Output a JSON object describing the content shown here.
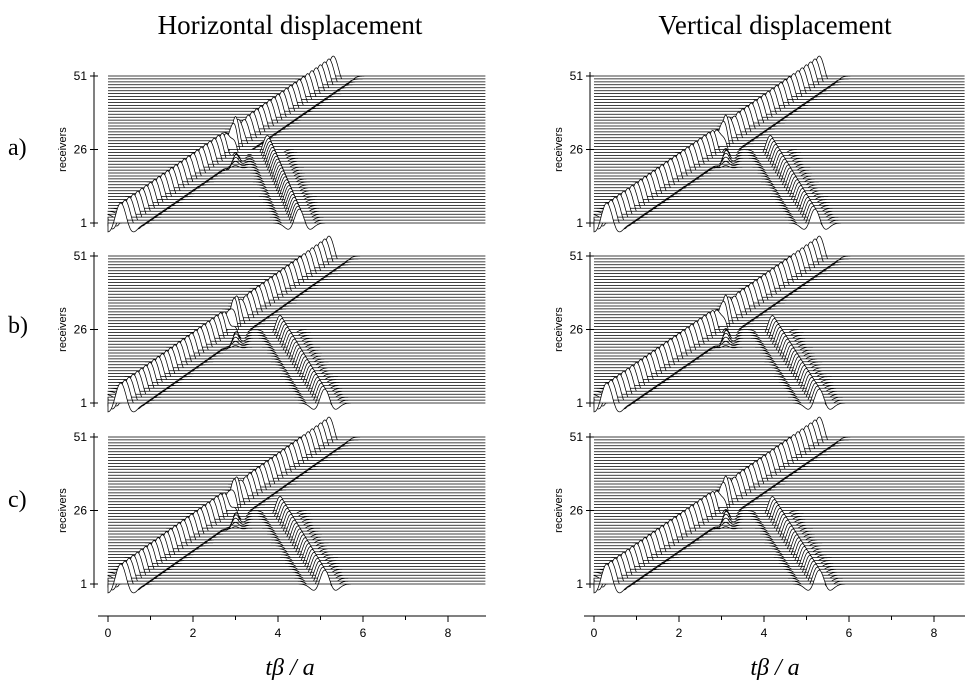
{
  "columns": [
    {
      "title": "Horizontal displacement"
    },
    {
      "title": "Vertical displacement"
    }
  ],
  "rows": [
    {
      "label": "a)"
    },
    {
      "label": "b)"
    },
    {
      "label": "c)"
    }
  ],
  "y_axis_label": "receivers",
  "x_axis_label": "tβ / a",
  "colors": {
    "trace_stroke": "#000000",
    "trace_fill": "#ffffff",
    "background": "#ffffff"
  },
  "chart_data": {
    "type": "seismogram",
    "receivers": {
      "count": 51,
      "ticks": [
        1,
        26,
        51
      ]
    },
    "x": {
      "ticks": [
        0,
        2,
        4,
        6,
        8
      ],
      "range": [
        -0.2,
        9
      ]
    },
    "panels": [
      {
        "column": "Horizontal displacement",
        "row": "a)",
        "direct_arrival_start": 0.3,
        "direct_arrival_end": 5.3,
        "scattered_arrival_end": 4.5,
        "scatterer_receiver": 26,
        "scatterer_time": 3.0
      },
      {
        "column": "Vertical displacement",
        "row": "a)",
        "direct_arrival_start": 0.3,
        "direct_arrival_end": 5.3,
        "scattered_arrival_end": 5.2,
        "scatterer_receiver": 26,
        "scatterer_time": 3.1
      },
      {
        "column": "Horizontal displacement",
        "row": "b)",
        "direct_arrival_start": 0.3,
        "direct_arrival_end": 5.2,
        "scattered_arrival_end": 5.1,
        "scatterer_receiver": 26,
        "scatterer_time": 3.0
      },
      {
        "column": "Vertical displacement",
        "row": "b)",
        "direct_arrival_start": 0.3,
        "direct_arrival_end": 5.3,
        "scattered_arrival_end": 5.3,
        "scatterer_receiver": 26,
        "scatterer_time": 3.1
      },
      {
        "column": "Horizontal displacement",
        "row": "c)",
        "direct_arrival_start": 0.3,
        "direct_arrival_end": 5.2,
        "scattered_arrival_end": 5.1,
        "scatterer_receiver": 26,
        "scatterer_time": 3.0
      },
      {
        "column": "Vertical displacement",
        "row": "c)",
        "direct_arrival_start": 0.3,
        "direct_arrival_end": 5.3,
        "scattered_arrival_end": 5.3,
        "scatterer_receiver": 26,
        "scatterer_time": 3.1
      }
    ]
  }
}
